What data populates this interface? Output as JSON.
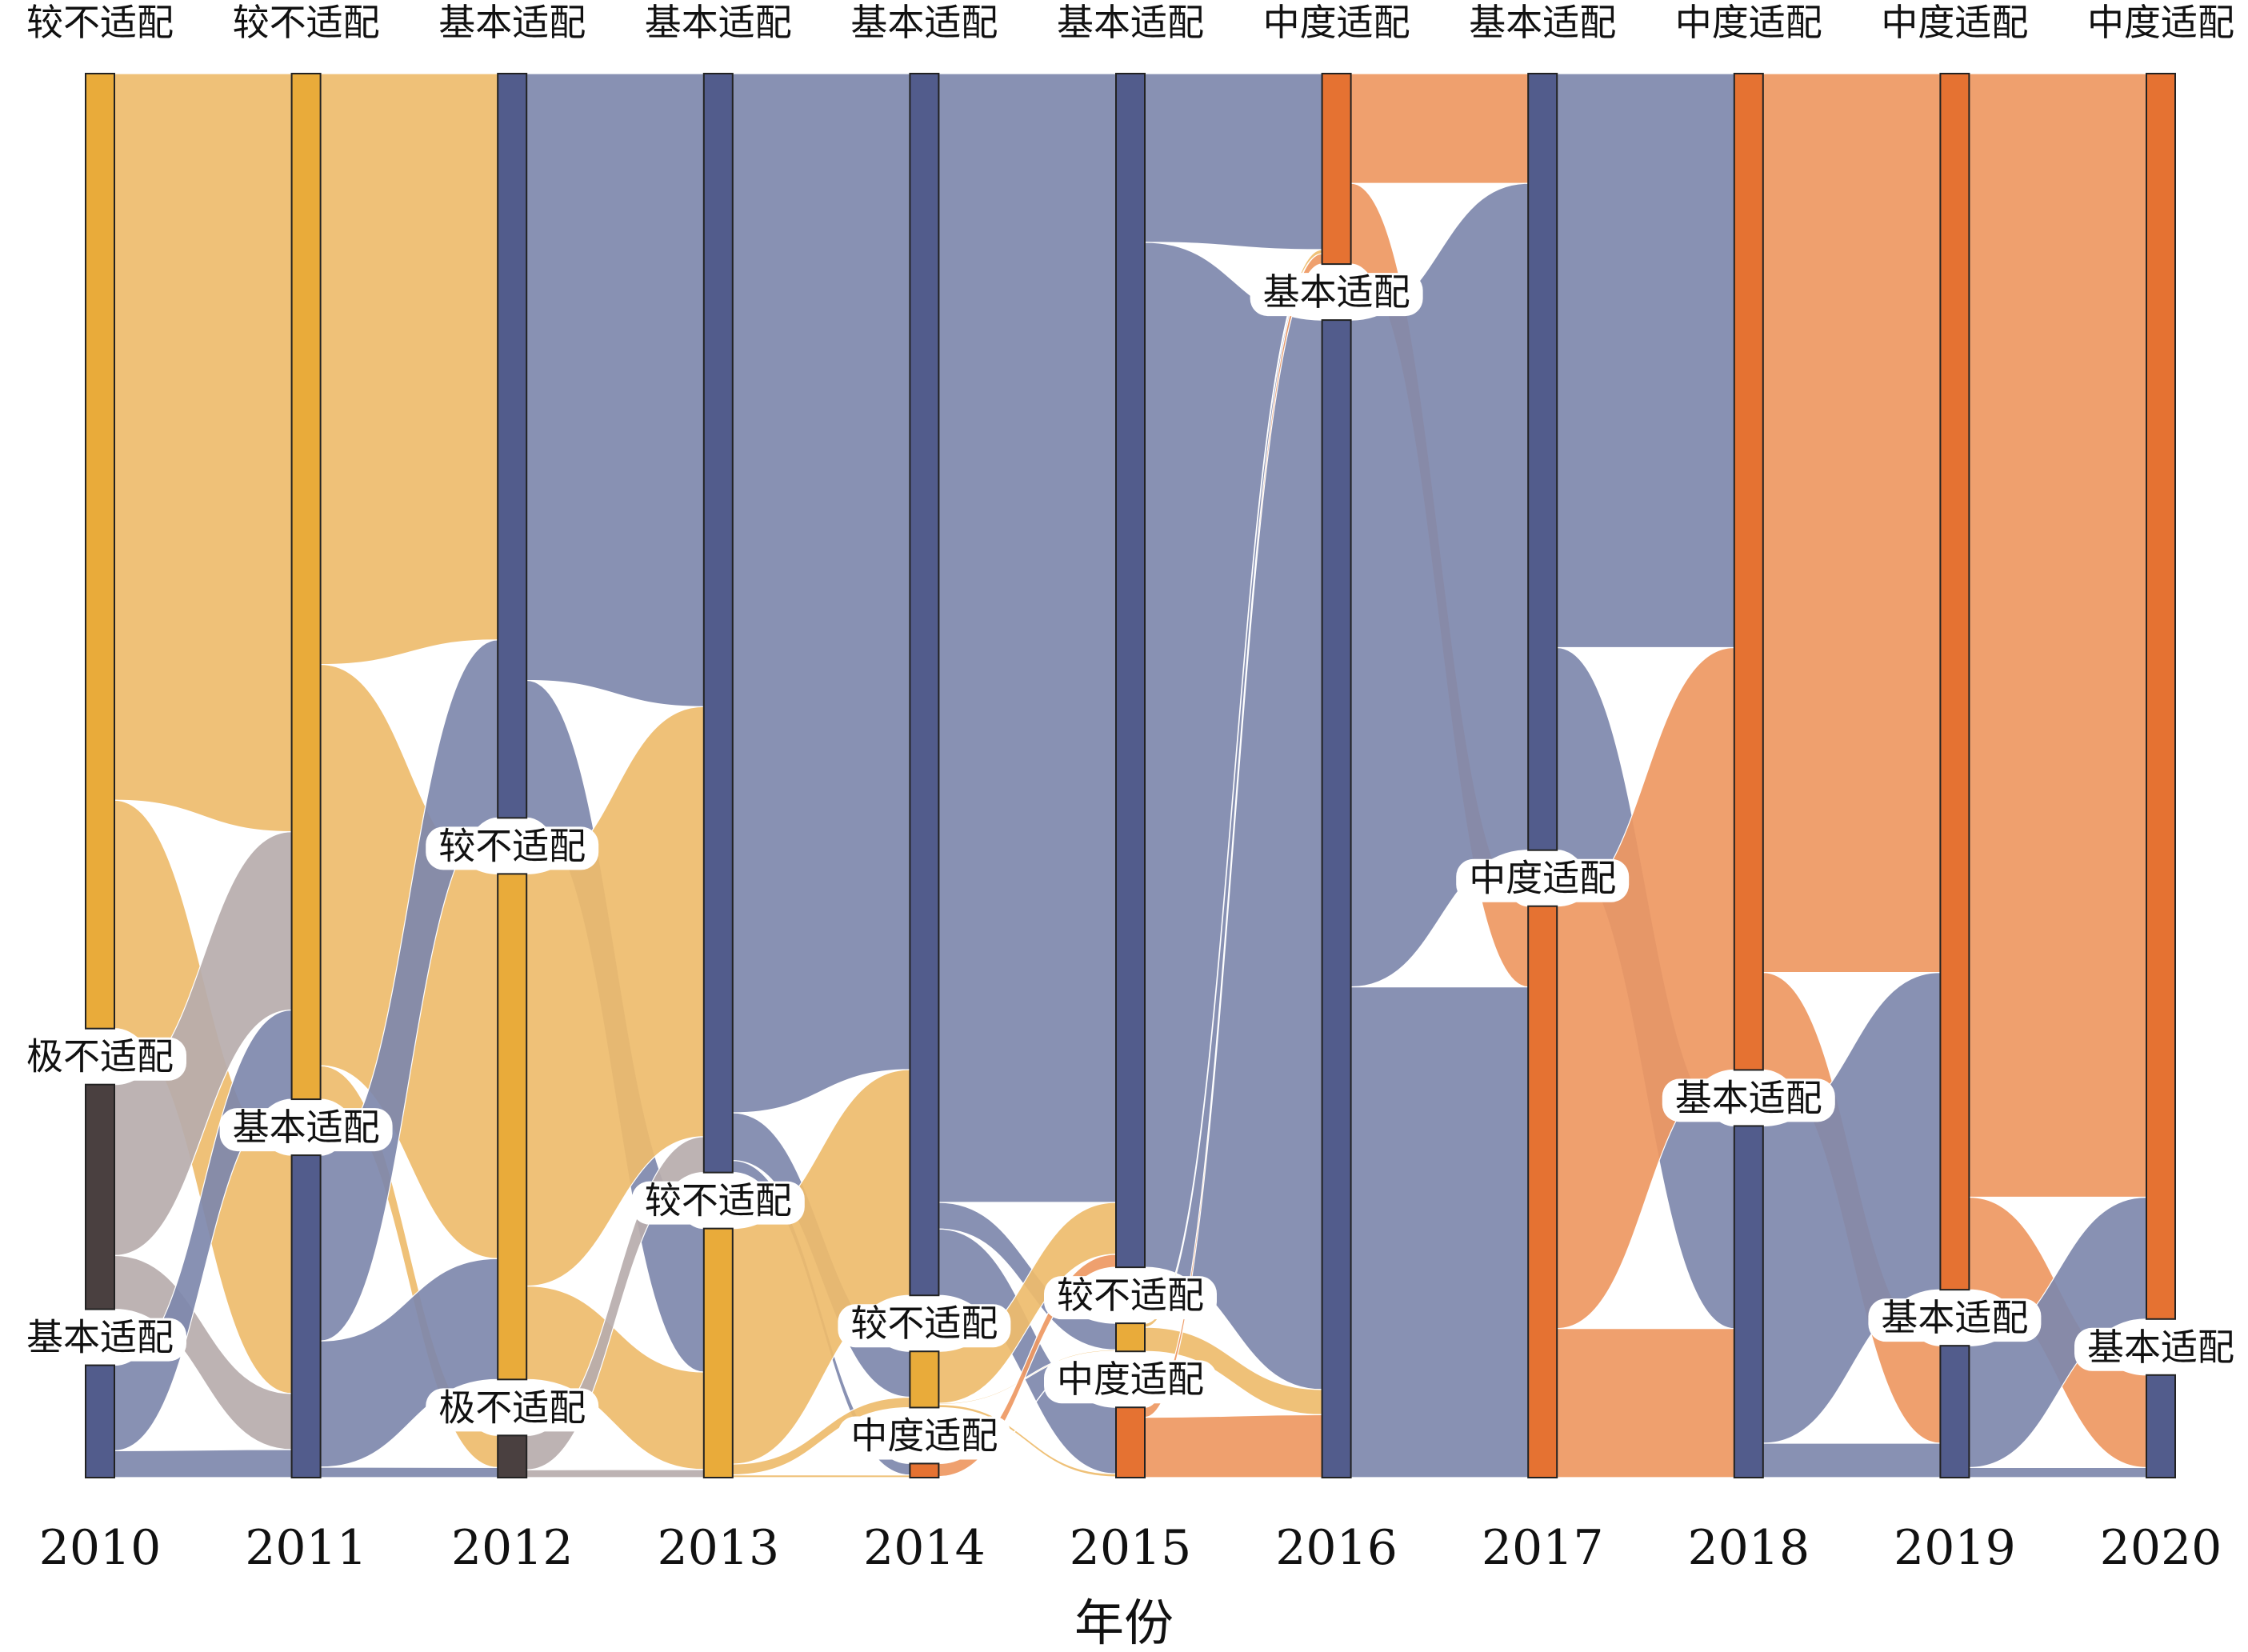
{
  "chart_data": {
    "type": "sankey",
    "title": "",
    "xlabel": "年份",
    "ylabel": "",
    "colors": {
      "较不适配": "#e9ab3a",
      "极不适配": "#4a4040",
      "基本适配": "#525c8c",
      "中度适配": "#e57232"
    },
    "link_colors": {
      "较不适配": "#eebc6c",
      "极不适配": "#b7adad",
      "基本适配": "#7e88ac",
      "中度适配": "#ee9862"
    },
    "years": [
      "2010",
      "2011",
      "2012",
      "2013",
      "2014",
      "2015",
      "2016",
      "2017",
      "2018",
      "2019",
      "2020"
    ],
    "columns": [
      {
        "year": "2010",
        "nodes": [
          {
            "category": "较不适配",
            "value": 68
          },
          {
            "category": "极不适配",
            "value": 16
          },
          {
            "category": "基本适配",
            "value": 7
          }
        ]
      },
      {
        "year": "2011",
        "nodes": [
          {
            "category": "较不适配",
            "value": 70
          },
          {
            "category": "基本适配",
            "value": 22
          }
        ]
      },
      {
        "year": "2012",
        "nodes": [
          {
            "category": "基本适配",
            "value": 53
          },
          {
            "category": "较不适配",
            "value": 36
          },
          {
            "category": "极不适配",
            "value": 3
          }
        ]
      },
      {
        "year": "2013",
        "nodes": [
          {
            "category": "基本适配",
            "value": 75
          },
          {
            "category": "较不适配",
            "value": 17
          }
        ]
      },
      {
        "year": "2014",
        "nodes": [
          {
            "category": "基本适配",
            "value": 87
          },
          {
            "category": "较不适配",
            "value": 4
          },
          {
            "category": "中度适配",
            "value": 1
          }
        ]
      },
      {
        "year": "2015",
        "nodes": [
          {
            "category": "基本适配",
            "value": 85
          },
          {
            "category": "较不适配",
            "value": 2
          },
          {
            "category": "中度适配",
            "value": 5
          }
        ]
      },
      {
        "year": "2016",
        "nodes": [
          {
            "category": "中度适配",
            "value": 13
          },
          {
            "category": "基本适配",
            "value": 79
          }
        ]
      },
      {
        "year": "2017",
        "nodes": [
          {
            "category": "基本适配",
            "value": 53
          },
          {
            "category": "中度适配",
            "value": 39
          }
        ]
      },
      {
        "year": "2018",
        "nodes": [
          {
            "category": "中度适配",
            "value": 68
          },
          {
            "category": "基本适配",
            "value": 24
          }
        ]
      },
      {
        "year": "2019",
        "nodes": [
          {
            "category": "中度适配",
            "value": 83
          },
          {
            "category": "基本适配",
            "value": 9
          }
        ]
      },
      {
        "year": "2020",
        "nodes": [
          {
            "category": "中度适配",
            "value": 85
          },
          {
            "category": "基本适配",
            "value": 7
          }
        ]
      }
    ]
  }
}
